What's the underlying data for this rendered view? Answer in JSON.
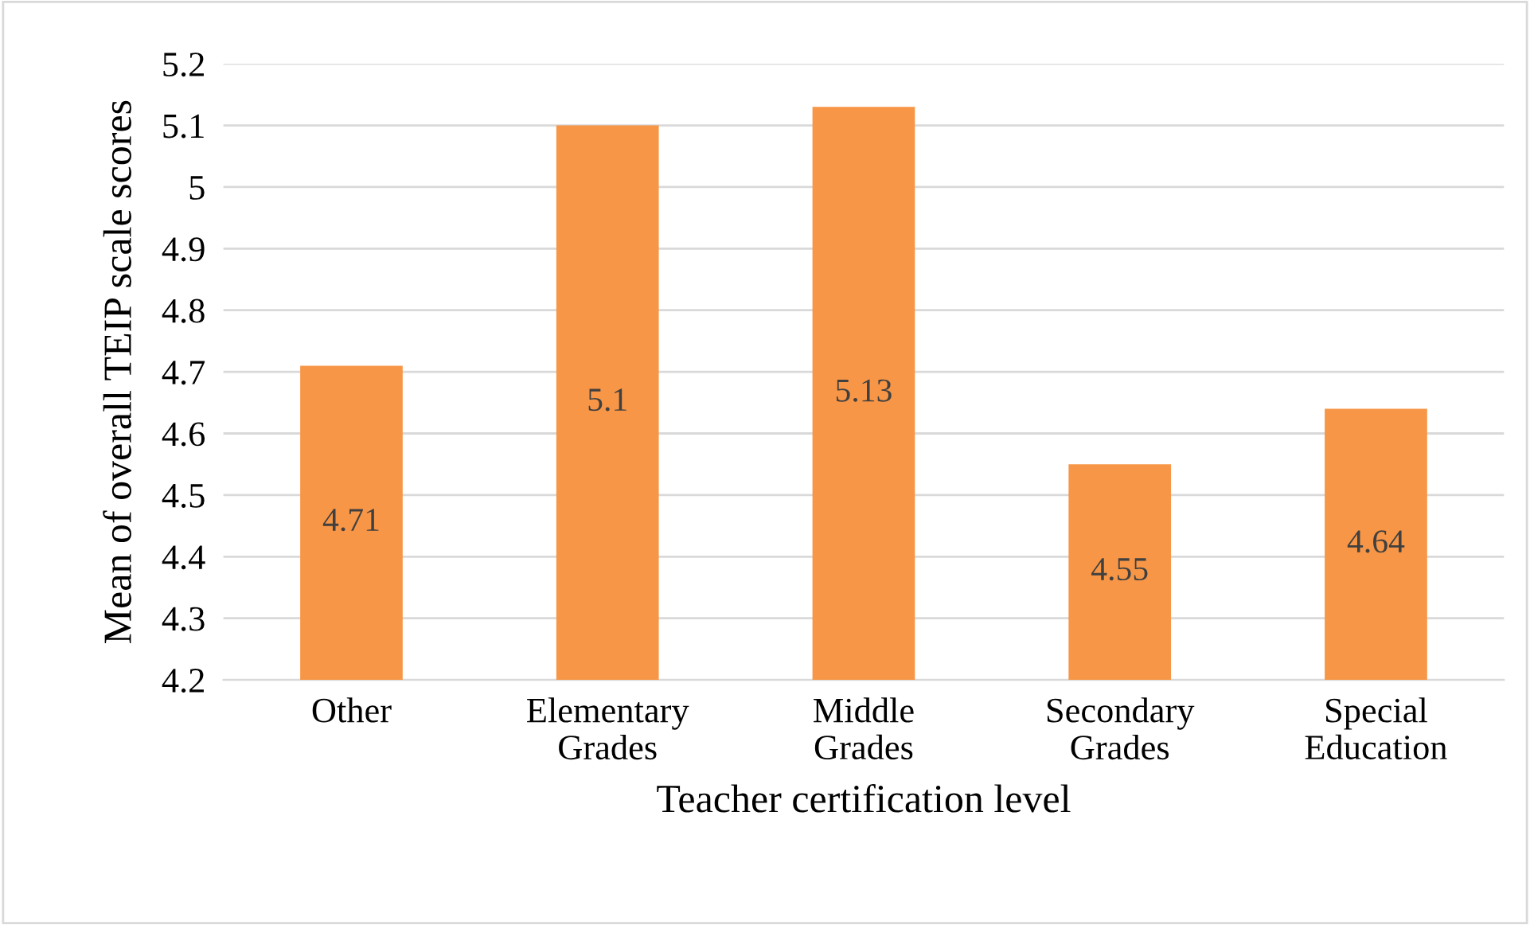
{
  "chart_data": {
    "type": "bar",
    "xlabel": "Teacher certification level",
    "ylabel": "Mean of overall TEIP scale scores",
    "categories": [
      "Other",
      "Elementary\nGrades",
      "Middle\nGrades",
      "Secondary\nGrades",
      "Special\nEducation"
    ],
    "values": [
      4.71,
      5.1,
      5.13,
      4.55,
      4.64
    ],
    "color": "#f79646",
    "ylim": [
      4.2,
      5.2
    ],
    "yticks": [
      4.2,
      4.3,
      4.4,
      4.5,
      4.6,
      4.7,
      4.8,
      4.9,
      5,
      5.1,
      5.2
    ],
    "grid": "y",
    "data_labels": true
  }
}
